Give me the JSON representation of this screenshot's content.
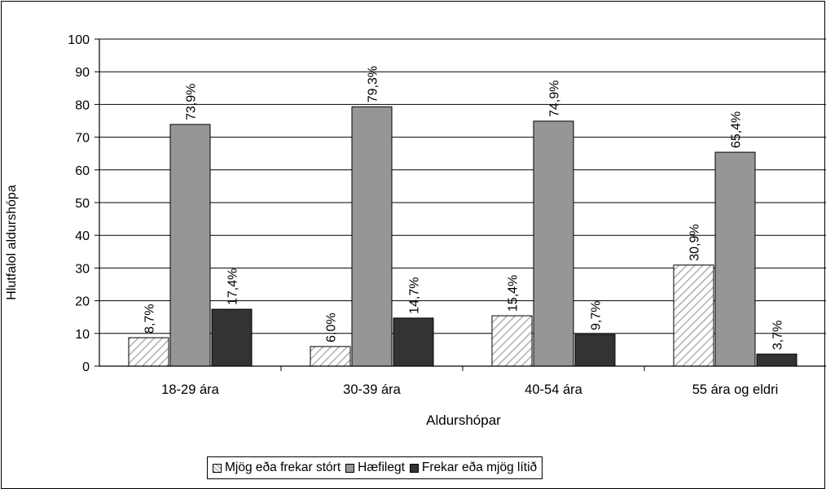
{
  "chart_data": {
    "type": "bar",
    "title": "",
    "xlabel": "Aldurshópar",
    "ylabel": "Hlutfalol aldurshópa",
    "ylim": [
      0,
      100
    ],
    "yticks": [
      0,
      10,
      20,
      30,
      40,
      50,
      60,
      70,
      80,
      90,
      100
    ],
    "grid": true,
    "legend_position": "bottom",
    "categories": [
      "18-29 ára",
      "30-39 ára",
      "40-54 ára",
      "55 ára og eldri"
    ],
    "series": [
      {
        "name": "Mjög eða frekar stórt",
        "values": [
          8.7,
          6.0,
          15.4,
          30.9
        ],
        "labels": [
          "8,7%",
          "6,0%",
          "15,4%",
          "30,9%"
        ],
        "color": "#ffffff",
        "pattern": "diagonal-hatch"
      },
      {
        "name": "Hæfilegt",
        "values": [
          73.9,
          79.3,
          74.9,
          65.4
        ],
        "labels": [
          "73,9%",
          "79,3%",
          "74,9%",
          "65,4%"
        ],
        "color": "#969696",
        "pattern": "solid"
      },
      {
        "name": "Frekar eða mjög lítið",
        "values": [
          17.4,
          14.7,
          9.7,
          3.7
        ],
        "labels": [
          "17,4%",
          "14,7%",
          "9,7%",
          "3,7%"
        ],
        "color": "#333333",
        "pattern": "solid"
      }
    ]
  }
}
